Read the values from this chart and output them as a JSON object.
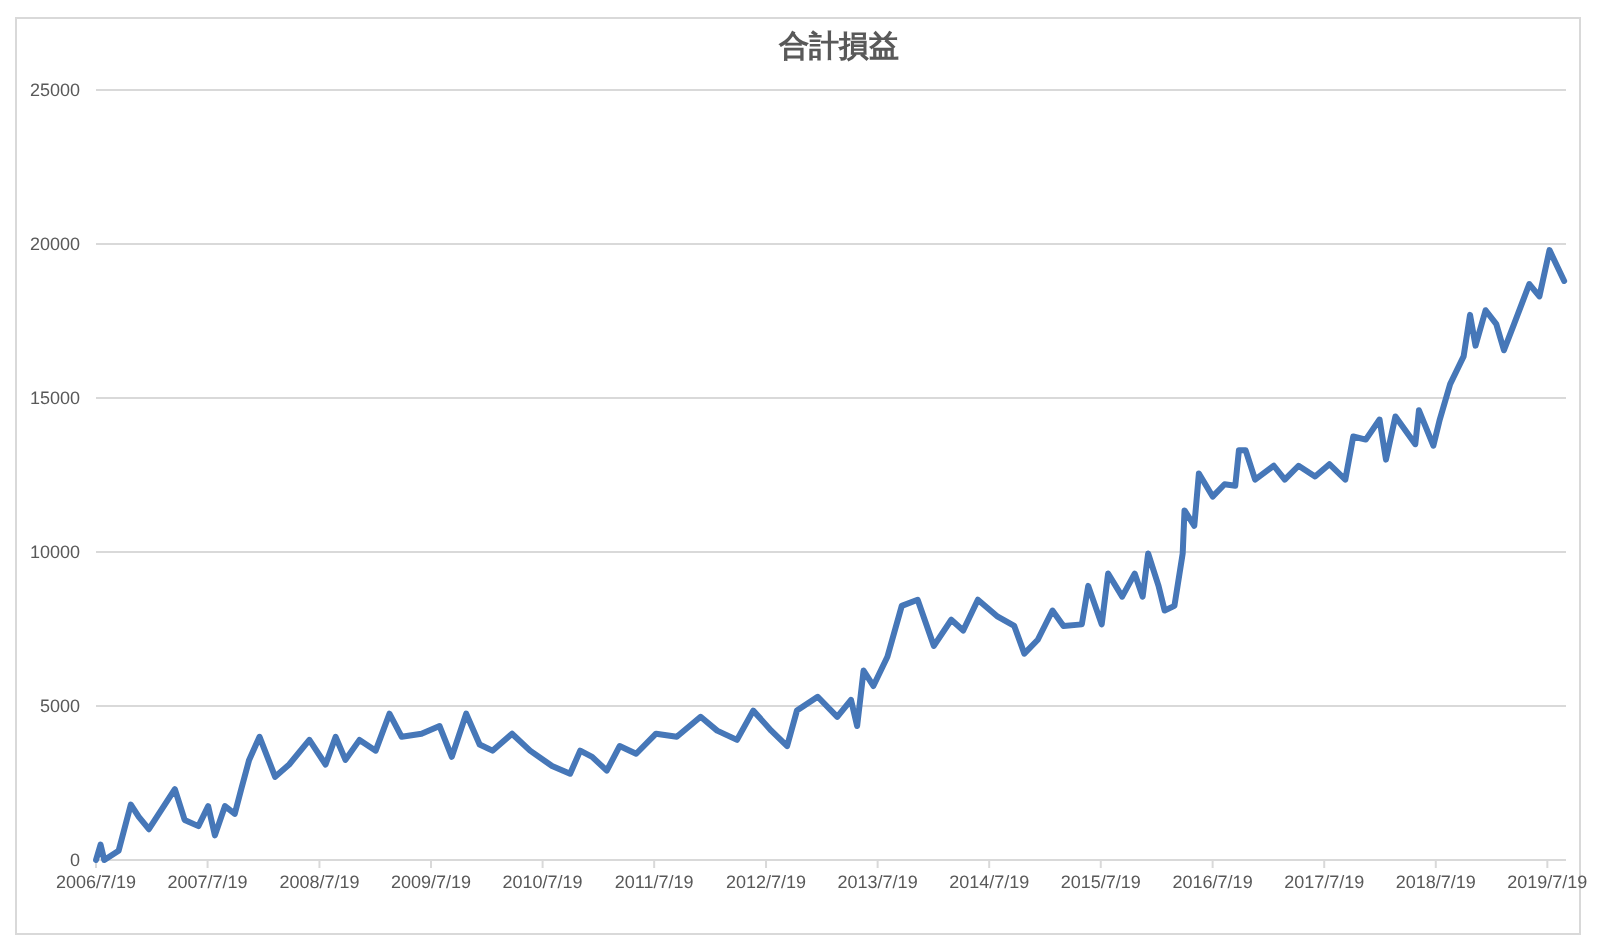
{
  "chart_data": {
    "type": "line",
    "title": "合計損益",
    "grid": "y",
    "x": [
      "2006-07-19",
      "2006-08-03",
      "2006-08-15",
      "2006-10-01",
      "2006-11-10",
      "2006-12-06",
      "2007-01-08",
      "2007-04-03",
      "2007-05-05",
      "2007-06-19",
      "2007-07-21",
      "2007-08-12",
      "2007-09-14",
      "2007-10-16",
      "2007-11-06",
      "2007-12-02",
      "2008-01-05",
      "2008-02-25",
      "2008-04-11",
      "2008-06-16",
      "2008-08-08",
      "2008-09-10",
      "2008-10-12",
      "2008-11-27",
      "2009-01-19",
      "2009-03-05",
      "2009-04-14",
      "2009-06-18",
      "2009-08-16",
      "2009-09-25",
      "2009-11-11",
      "2009-12-25",
      "2010-02-05",
      "2010-04-10",
      "2010-06-08",
      "2010-08-19",
      "2010-10-17",
      "2010-11-19",
      "2010-12-28",
      "2011-02-14",
      "2011-03-28",
      "2011-05-21",
      "2011-07-25",
      "2011-10-01",
      "2011-12-18",
      "2012-02-10",
      "2012-04-15",
      "2012-06-07",
      "2012-08-05",
      "2012-09-26",
      "2012-10-28",
      "2013-01-04",
      "2013-03-09",
      "2013-04-23",
      "2013-05-13",
      "2013-06-03",
      "2013-07-05",
      "2013-08-20",
      "2013-10-06",
      "2013-11-27",
      "2014-01-19",
      "2014-03-17",
      "2014-04-25",
      "2014-06-12",
      "2014-08-16",
      "2014-10-09",
      "2014-11-11",
      "2014-12-25",
      "2015-02-11",
      "2015-03-19",
      "2015-05-18",
      "2015-06-08",
      "2015-07-22",
      "2015-08-12",
      "2015-09-27",
      "2015-11-07",
      "2015-12-03",
      "2015-12-21",
      "2016-01-24",
      "2016-02-13",
      "2016-03-16",
      "2016-04-12",
      "2016-04-18",
      "2016-05-20",
      "2016-06-04",
      "2016-07-19",
      "2016-08-27",
      "2016-10-01",
      "2016-10-13",
      "2016-11-04",
      "2016-12-05",
      "2017-02-04",
      "2017-03-12",
      "2017-04-26",
      "2017-06-19",
      "2017-08-05",
      "2017-09-26",
      "2017-10-22",
      "2017-12-02",
      "2018-01-16",
      "2018-02-06",
      "2018-03-09",
      "2018-05-13",
      "2018-05-25",
      "2018-07-11",
      "2018-08-01",
      "2018-09-04",
      "2018-10-18",
      "2018-11-08",
      "2018-11-26",
      "2018-12-29",
      "2019-02-02",
      "2019-02-27",
      "2019-04-01",
      "2019-05-21",
      "2019-06-23",
      "2019-07-26",
      "2019-09-12"
    ],
    "series": [
      {
        "color": "#4677b8",
        "values": [
          0,
          500,
          0,
          300,
          1800,
          1400,
          1000,
          2300,
          1300,
          1100,
          1750,
          800,
          1750,
          1500,
          2300,
          3250,
          4000,
          2700,
          3100,
          3900,
          3100,
          4000,
          3250,
          3900,
          3550,
          4750,
          4000,
          4100,
          4350,
          3350,
          4750,
          3750,
          3550,
          4100,
          3550,
          3050,
          2800,
          3550,
          3350,
          2900,
          3700,
          3450,
          4100,
          4000,
          4650,
          4200,
          3900,
          4850,
          4200,
          3700,
          4850,
          5300,
          4650,
          5200,
          4350,
          6150,
          5650,
          6600,
          8250,
          8450,
          6950,
          7800,
          7450,
          8450,
          7900,
          7600,
          6700,
          7150,
          8100,
          7600,
          7650,
          8900,
          7650,
          9300,
          8550,
          9300,
          8550,
          9950,
          8900,
          8100,
          8250,
          9950,
          11350,
          10850,
          12550,
          11800,
          12200,
          12150,
          13300,
          13300,
          12350,
          12800,
          12350,
          12800,
          12450,
          12850,
          12350,
          13750,
          13650,
          14300,
          13000,
          14400,
          13500,
          14600,
          13450,
          14300,
          15450,
          16350,
          17700,
          16700,
          17850,
          17400,
          16550,
          17400,
          18700,
          18300,
          19800,
          18800
        ]
      }
    ],
    "xlim": [
      "2006-07-19",
      "2019-09-18"
    ],
    "xticks": [
      {
        "value": "2006-07-19",
        "label": "2006/7/19"
      },
      {
        "value": "2007-07-19",
        "label": "2007/7/19"
      },
      {
        "value": "2008-07-19",
        "label": "2008/7/19"
      },
      {
        "value": "2009-07-19",
        "label": "2009/7/19"
      },
      {
        "value": "2010-07-19",
        "label": "2010/7/19"
      },
      {
        "value": "2011-07-19",
        "label": "2011/7/19"
      },
      {
        "value": "2012-07-19",
        "label": "2012/7/19"
      },
      {
        "value": "2013-07-19",
        "label": "2013/7/19"
      },
      {
        "value": "2014-07-19",
        "label": "2014/7/19"
      },
      {
        "value": "2015-07-19",
        "label": "2015/7/19"
      },
      {
        "value": "2016-07-19",
        "label": "2016/7/19"
      },
      {
        "value": "2017-07-19",
        "label": "2017/7/19"
      },
      {
        "value": "2018-07-19",
        "label": "2018/7/19"
      },
      {
        "value": "2019-07-19",
        "label": "2019/7/19"
      }
    ],
    "ylim": [
      0,
      25000
    ],
    "yticks": [
      0,
      5000,
      10000,
      15000,
      20000,
      25000
    ]
  }
}
